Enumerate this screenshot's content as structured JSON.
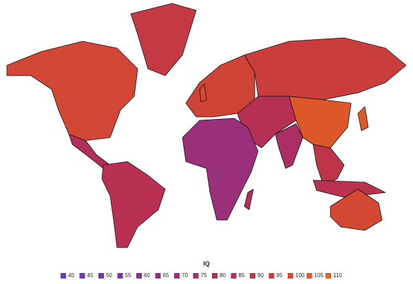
{
  "legend": {
    "title": "IQ",
    "items": [
      {
        "value": 40,
        "color": "#6a3cbc"
      },
      {
        "value": 45,
        "color": "#6f3ab2"
      },
      {
        "value": 50,
        "color": "#7537a8"
      },
      {
        "value": 55,
        "color": "#7d359e"
      },
      {
        "value": 60,
        "color": "#863393"
      },
      {
        "value": 65,
        "color": "#903187"
      },
      {
        "value": 70,
        "color": "#9a2f7b"
      },
      {
        "value": 75,
        "color": "#a42d6e"
      },
      {
        "value": 80,
        "color": "#ae2d60"
      },
      {
        "value": 85,
        "color": "#b83152"
      },
      {
        "value": 90,
        "color": "#c23745"
      },
      {
        "value": 95,
        "color": "#cb3f3a"
      },
      {
        "value": 100,
        "color": "#d54a30"
      },
      {
        "value": 105,
        "color": "#de5728"
      },
      {
        "value": 110,
        "color": "#e66424"
      }
    ]
  },
  "regions": [
    {
      "value": 98
    },
    {
      "value": 91
    },
    {
      "value": 82
    },
    {
      "value": 85
    },
    {
      "value": 97
    },
    {
      "value": 94
    },
    {
      "value": 84
    },
    {
      "value": 70
    },
    {
      "value": 79
    },
    {
      "value": 105
    },
    {
      "value": 88
    },
    {
      "value": 86
    },
    {
      "value": 99
    },
    {
      "value": 106
    },
    {
      "value": 82
    },
    {
      "value": 100
    }
  ]
}
